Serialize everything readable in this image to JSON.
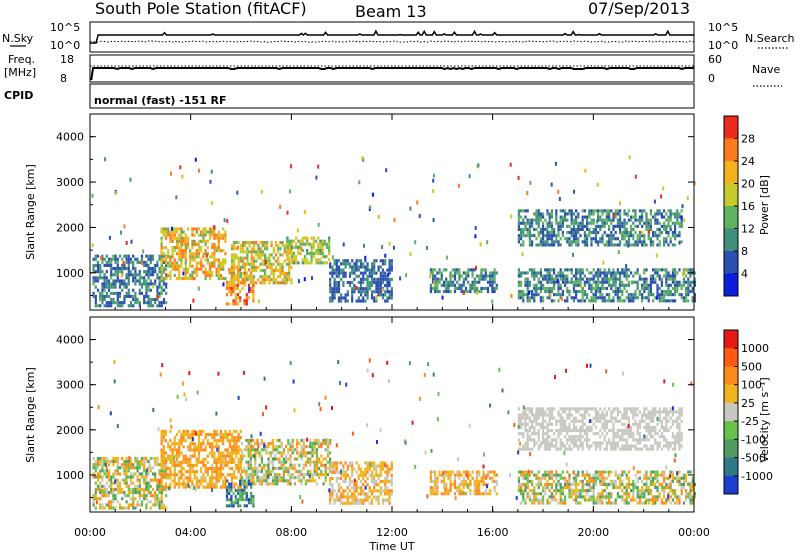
{
  "header": {
    "title": "South Pole Station (fitACF)",
    "beam": "Beam 13",
    "date": "07/Sep/2013"
  },
  "noise_panel": {
    "left_label": "N.Sky",
    "right_label": "N.Search",
    "left_ticks": [
      "10^5",
      "10^0"
    ],
    "right_ticks": [
      "10^5",
      "10^0"
    ]
  },
  "freq_panel": {
    "left_label_line1": "Freq.",
    "left_label_line2": "[MHz]",
    "right_label": "Nave",
    "left_ticks": [
      "18",
      "8"
    ],
    "right_ticks": [
      "60",
      "0"
    ]
  },
  "cpid_panel": {
    "label": "CPID",
    "text": "normal (fast) -151 RF"
  },
  "power_panel": {
    "ylabel": "Slant Range [km]",
    "yticks": [
      "4000",
      "3000",
      "2000",
      "1000"
    ],
    "colorbar_label": "Power [dB]",
    "colorbar_ticks": [
      "28",
      "24",
      "20",
      "16",
      "12",
      "8",
      "4"
    ],
    "colors": [
      "#0a1edc",
      "#2c4fb4",
      "#3f8f7a",
      "#5fb25f",
      "#c6cc2a",
      "#f5b21b",
      "#ff7a1a",
      "#ee2a1a"
    ]
  },
  "velocity_panel": {
    "ylabel": "Slant Range [km]",
    "yticks": [
      "4000",
      "3000",
      "2000",
      "1000"
    ],
    "colorbar_label": "Velocity [m s⁻¹]",
    "colorbar_ticks": [
      "1000",
      "500",
      "100",
      "25",
      "-25",
      "-100",
      "-500",
      "-1000"
    ],
    "colors": [
      "#1c3fcf",
      "#2e7a88",
      "#4f9b62",
      "#66c24a",
      "#c8c8c0",
      "#f0b41c",
      "#ff8c1a",
      "#ff5a12",
      "#e61a14"
    ]
  },
  "x_axis": {
    "label": "Time UT",
    "ticks": [
      "00:00",
      "04:00",
      "08:00",
      "12:00",
      "16:00",
      "20:00",
      "00:00"
    ]
  },
  "chart_data": [
    {
      "type": "heatmap",
      "name": "Power",
      "x_range_hours": [
        0,
        24
      ],
      "y_range_km": [
        180,
        4500
      ],
      "value_range": [
        0,
        30
      ],
      "regions": [
        {
          "t0": 0.1,
          "t1": 3.0,
          "r0": 300,
          "r1": 1400,
          "pmin": 4,
          "pmax": 12
        },
        {
          "t0": 2.8,
          "t1": 5.4,
          "r0": 900,
          "r1": 2000,
          "pmin": 12,
          "pmax": 26
        },
        {
          "t0": 5.4,
          "t1": 6.5,
          "r0": 300,
          "r1": 1100,
          "pmin": 16,
          "pmax": 28
        },
        {
          "t0": 5.6,
          "t1": 8.0,
          "r0": 800,
          "r1": 1700,
          "pmin": 12,
          "pmax": 24
        },
        {
          "t0": 7.8,
          "t1": 9.5,
          "r0": 1200,
          "r1": 1800,
          "pmin": 10,
          "pmax": 20
        },
        {
          "t0": 9.5,
          "t1": 12.0,
          "r0": 400,
          "r1": 1300,
          "pmin": 4,
          "pmax": 10
        },
        {
          "t0": 13.5,
          "t1": 16.2,
          "r0": 600,
          "r1": 1100,
          "pmin": 4,
          "pmax": 14
        },
        {
          "t0": 17.0,
          "t1": 24.0,
          "r0": 400,
          "r1": 1100,
          "pmin": 4,
          "pmax": 14
        },
        {
          "t0": 17.0,
          "t1": 23.5,
          "r0": 1600,
          "r1": 2400,
          "pmin": 4,
          "pmax": 14
        }
      ]
    },
    {
      "type": "heatmap",
      "name": "Velocity",
      "x_range_hours": [
        0,
        24
      ],
      "y_range_km": [
        180,
        4500
      ],
      "value_range": [
        -1000,
        1000
      ],
      "regions": [
        {
          "t0": 0.1,
          "t1": 3.0,
          "r0": 300,
          "r1": 1400,
          "vmin": -500,
          "vmax": 500
        },
        {
          "t0": 2.8,
          "t1": 6.0,
          "r0": 700,
          "r1": 2000,
          "vmin": -500,
          "vmax": -100
        },
        {
          "t0": 5.4,
          "t1": 6.5,
          "r0": 300,
          "r1": 900,
          "vmin": 100,
          "vmax": 1000
        },
        {
          "t0": 6.0,
          "t1": 9.5,
          "r0": 800,
          "r1": 1800,
          "vmin": -500,
          "vmax": 500
        },
        {
          "t0": 9.5,
          "t1": 12.0,
          "r0": 400,
          "r1": 1300,
          "vmin": -500,
          "vmax": 100
        },
        {
          "t0": 13.5,
          "t1": 16.2,
          "r0": 600,
          "r1": 1100,
          "vmin": -500,
          "vmax": -25
        },
        {
          "t0": 17.0,
          "t1": 24.0,
          "r0": 400,
          "r1": 1100,
          "vmin": -500,
          "vmax": 500
        },
        {
          "t0": 17.0,
          "t1": 23.5,
          "r0": 1600,
          "r1": 2500,
          "vmin": -25,
          "vmax": 25
        }
      ]
    }
  ]
}
